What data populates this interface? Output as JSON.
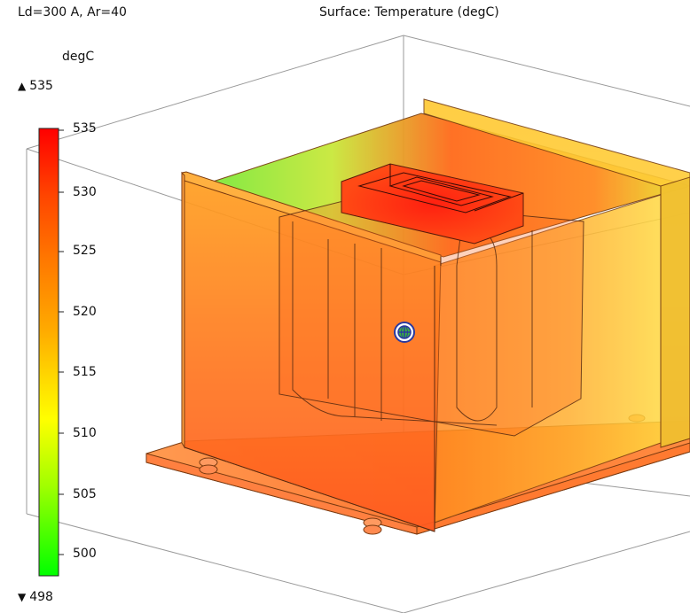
{
  "plot": {
    "title_left": "Ld=300 A, Ar=40",
    "title_center": "Surface: Temperature (degC)",
    "colorbar": {
      "unit": "degC",
      "max_label": "535",
      "min_label": "498",
      "ticks": [
        "535",
        "530",
        "525",
        "520",
        "515",
        "510",
        "505",
        "500"
      ],
      "colormap": [
        "#ff0000",
        "#ff6a00",
        "#ffa000",
        "#ffd000",
        "#ffff00",
        "#a0ff00",
        "#00ff00"
      ]
    },
    "icons": {
      "axis_orientation": "globe-icon"
    }
  }
}
